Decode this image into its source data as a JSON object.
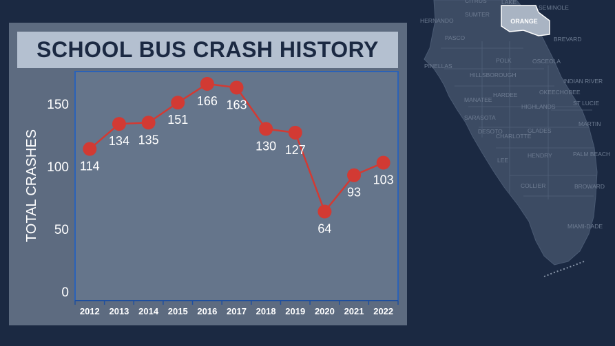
{
  "colors": {
    "background": "#1b2942",
    "panel": "#5d6b80",
    "plot_area": "#65758b",
    "title_box": "#b4c0d0",
    "title_text": "#1b2942",
    "series": "#d23a33",
    "plot_border": "#2a62b8",
    "map_land": "#3c4b63",
    "highlight_county": "#a9b4c3"
  },
  "chart_data": {
    "type": "line",
    "title": "SCHOOL BUS CRASH HISTORY",
    "ylabel": "TOTAL CRASHES",
    "xlabel": "",
    "categories": [
      "2012",
      "2013",
      "2014",
      "2015",
      "2016",
      "2017",
      "2018",
      "2019",
      "2020",
      "2021",
      "2022"
    ],
    "series": [
      {
        "values": [
          114,
          134,
          135,
          151,
          166,
          163,
          130,
          127,
          64,
          93,
          103
        ]
      }
    ],
    "yticks": [
      0,
      50,
      100,
      150
    ],
    "ylim": [
      0,
      175
    ],
    "grid": false,
    "data_labels": true
  },
  "map": {
    "highlighted_county": "ORANGE",
    "county_labels": [
      "CITRUS",
      "LAKE",
      "SEMINOLE",
      "SUMTER",
      "HERNANDO",
      "PASCO",
      "BREVARD",
      "PINELLAS",
      "HILLSBOROUGH",
      "POLK",
      "OSCEOLA",
      "INDIAN RIVER",
      "MANATEE",
      "HARDEE",
      "OKEECHOBEE",
      "HIGHLANDS",
      "ST LUCIE",
      "SARASOTA",
      "MARTIN",
      "DESOTO",
      "CHARLOTTE",
      "GLADES",
      "LEE",
      "HENDRY",
      "PALM BEACH",
      "COLLIER",
      "BROWARD",
      "MIAMI-DADE"
    ]
  }
}
